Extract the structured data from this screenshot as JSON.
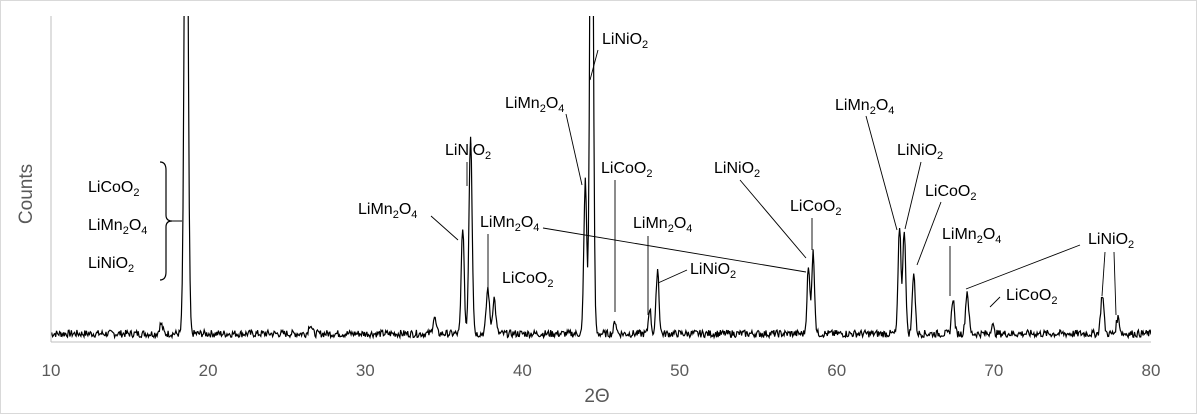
{
  "chart_data": {
    "type": "line",
    "title": "",
    "xlabel": "2Θ",
    "ylabel": "Counts",
    "xlim": [
      10,
      80
    ],
    "xticks": [
      10,
      20,
      30,
      40,
      50,
      60,
      70,
      80
    ],
    "ylim": [
      0,
      100
    ],
    "grid": false,
    "legend": "none",
    "line_color": "#000000",
    "peaks": [
      {
        "x": 17.0,
        "y": 3,
        "w": 0.1
      },
      {
        "x": 18.6,
        "y": 200,
        "w": 0.11
      },
      {
        "x": 26.5,
        "y": 3,
        "w": 0.1
      },
      {
        "x": 34.4,
        "y": 5,
        "w": 0.1
      },
      {
        "x": 36.2,
        "y": 33,
        "w": 0.09
      },
      {
        "x": 36.7,
        "y": 61,
        "w": 0.1
      },
      {
        "x": 37.8,
        "y": 14,
        "w": 0.1
      },
      {
        "x": 38.2,
        "y": 11,
        "w": 0.1
      },
      {
        "x": 44.0,
        "y": 47,
        "w": 0.09
      },
      {
        "x": 44.4,
        "y": 200,
        "w": 0.1
      },
      {
        "x": 45.9,
        "y": 4,
        "w": 0.08
      },
      {
        "x": 48.1,
        "y": 8,
        "w": 0.08
      },
      {
        "x": 48.6,
        "y": 20,
        "w": 0.09
      },
      {
        "x": 58.2,
        "y": 20,
        "w": 0.09
      },
      {
        "x": 58.5,
        "y": 25,
        "w": 0.09
      },
      {
        "x": 64.0,
        "y": 33,
        "w": 0.09
      },
      {
        "x": 64.3,
        "y": 32,
        "w": 0.09
      },
      {
        "x": 64.9,
        "y": 19,
        "w": 0.09
      },
      {
        "x": 67.4,
        "y": 11,
        "w": 0.09
      },
      {
        "x": 68.3,
        "y": 13,
        "w": 0.1
      },
      {
        "x": 69.9,
        "y": 3,
        "w": 0.08
      },
      {
        "x": 76.9,
        "y": 12,
        "w": 0.1
      },
      {
        "x": 77.9,
        "y": 5,
        "w": 0.1
      }
    ],
    "annotations": [
      {
        "lines": [
          [
            "LiCoO",
            "2",
            ""
          ],
          [
            "LiMn",
            "2",
            "O",
            "4"
          ],
          [
            "LiNiO",
            "2"
          ]
        ],
        "bracket": true,
        "x": 18.6
      },
      {
        "lines": [
          [
            "LiNiO",
            "2"
          ]
        ],
        "x": 36.7
      },
      {
        "lines": [
          [
            "LiMn",
            "2",
            "O",
            "4"
          ]
        ],
        "x": 36.2
      },
      {
        "lines": [
          [
            "LiMn",
            "2",
            "O",
            "4"
          ]
        ],
        "x": 37.8
      },
      {
        "lines": [
          [
            "LiCoO",
            "2"
          ]
        ],
        "x": 38.2
      },
      {
        "lines": [
          [
            "LiMn",
            "2",
            "O",
            "4"
          ]
        ],
        "x": 44.0
      },
      {
        "lines": [
          [
            "LiNiO",
            "2"
          ]
        ],
        "x": 44.4
      },
      {
        "lines": [
          [
            "LiCoO",
            "2"
          ]
        ],
        "x": 45.9
      },
      {
        "lines": [
          [
            "LiMn",
            "2",
            "O",
            "4"
          ]
        ],
        "x": 48.1
      },
      {
        "lines": [
          [
            "LiNiO",
            "2"
          ]
        ],
        "x": 48.6
      },
      {
        "lines": [
          [
            "LiNiO",
            "2"
          ]
        ],
        "x": 58.2
      },
      {
        "lines": [
          [
            "LiCoO",
            "2"
          ]
        ],
        "x": 58.5
      },
      {
        "lines": [
          [
            "LiMn",
            "2",
            "O",
            "4"
          ]
        ],
        "x": 64.0
      },
      {
        "lines": [
          [
            "LiNiO",
            "2"
          ]
        ],
        "x": 64.3
      },
      {
        "lines": [
          [
            "LiCoO",
            "2"
          ]
        ],
        "x": 64.9
      },
      {
        "lines": [
          [
            "LiMn",
            "2",
            "O",
            "4"
          ]
        ],
        "x": 67.4
      },
      {
        "lines": [
          [
            "LiCoO",
            "2"
          ]
        ],
        "x": 69.9
      },
      {
        "lines": [
          [
            "LiNiO",
            "2"
          ]
        ],
        "x": 76.9
      }
    ]
  }
}
